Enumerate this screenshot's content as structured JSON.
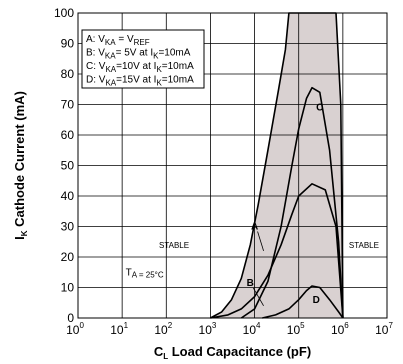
{
  "chart_data": {
    "type": "area",
    "title": "",
    "xlabel": {
      "symbol": "C",
      "subscript": "L",
      "text": "Load Capacitance (pF)"
    },
    "ylabel": {
      "symbol": "I",
      "subscript": "K",
      "text": "Cathode Current (mA)"
    },
    "x_scale": "log",
    "xlim": [
      1,
      10000000
    ],
    "ylim": [
      0,
      100
    ],
    "x_ticks": [
      {
        "base": "10",
        "exp": "0",
        "value": 1
      },
      {
        "base": "10",
        "exp": "1",
        "value": 10
      },
      {
        "base": "10",
        "exp": "2",
        "value": 100
      },
      {
        "base": "10",
        "exp": "3",
        "value": 1000
      },
      {
        "base": "10",
        "exp": "4",
        "value": 10000
      },
      {
        "base": "10",
        "exp": "5",
        "value": 100000
      },
      {
        "base": "10",
        "exp": "6",
        "value": 1000000
      },
      {
        "base": "10",
        "exp": "7",
        "value": 10000000
      }
    ],
    "y_ticks": [
      "0",
      "10",
      "20",
      "30",
      "40",
      "50",
      "60",
      "70",
      "80",
      "90",
      "100"
    ],
    "grid": true,
    "legend": {
      "position": "top-left",
      "entries": [
        {
          "key": "A:",
          "v": "V",
          "vsub": "KA",
          "mid": " = V",
          "msub": "REF",
          "tail": "",
          "isub": "",
          "end": ""
        },
        {
          "key": "B:",
          "v": "V",
          "vsub": "KA",
          "mid": "= 5V at I",
          "msub": "",
          "tail": "",
          "isub": "K",
          "end": "=10mA"
        },
        {
          "key": "C:",
          "v": "V",
          "vsub": "KA",
          "mid": "=10V at I",
          "msub": "",
          "tail": "",
          "isub": "K",
          "end": "=10mA"
        },
        {
          "key": "D:",
          "v": "V",
          "vsub": "KA",
          "mid": "=15V at I",
          "msub": "",
          "tail": "",
          "isub": "K",
          "end": "=10mA"
        }
      ]
    },
    "region_labels": [
      {
        "text": "STABLE",
        "x": 150,
        "y": 23
      },
      {
        "text": "STABLE",
        "x": 3000000,
        "y": 23
      }
    ],
    "annotation": {
      "text": "T",
      "sub": "A = 25°C"
    },
    "fill_color": "#d9d1d1",
    "series": [
      {
        "name": "A",
        "label_at": [
          10000,
          29
        ],
        "points": [
          [
            1000,
            0
          ],
          [
            1800,
            2
          ],
          [
            3000,
            6
          ],
          [
            5000,
            13
          ],
          [
            8000,
            24
          ],
          [
            12000,
            37
          ],
          [
            20000,
            55
          ],
          [
            35000,
            75
          ],
          [
            50000,
            88
          ],
          [
            60000,
            100
          ],
          [
            200000,
            100
          ],
          [
            400000,
            100
          ],
          [
            700000,
            100
          ],
          [
            900000,
            70
          ],
          [
            1000000,
            0
          ]
        ]
      },
      {
        "name": "B",
        "label_at": [
          8000,
          10.5
        ],
        "points": [
          [
            1000,
            0
          ],
          [
            2500,
            1
          ],
          [
            5000,
            3
          ],
          [
            10000,
            7
          ],
          [
            20000,
            14
          ],
          [
            40000,
            24
          ],
          [
            70000,
            34
          ],
          [
            100000,
            40
          ],
          [
            200000,
            44
          ],
          [
            400000,
            42
          ],
          [
            700000,
            30
          ],
          [
            1000000,
            0
          ]
        ]
      },
      {
        "name": "C",
        "label_at": [
          300000,
          68
        ],
        "points": [
          [
            5000,
            0
          ],
          [
            10000,
            3
          ],
          [
            20000,
            12
          ],
          [
            40000,
            30
          ],
          [
            70000,
            50
          ],
          [
            100000,
            62
          ],
          [
            150000,
            72
          ],
          [
            200000,
            75.5
          ],
          [
            300000,
            74
          ],
          [
            500000,
            55
          ],
          [
            800000,
            25
          ],
          [
            1000000,
            0
          ]
        ]
      },
      {
        "name": "D",
        "label_at": [
          250000,
          5
        ],
        "points": [
          [
            15000,
            0
          ],
          [
            30000,
            1
          ],
          [
            60000,
            3
          ],
          [
            100000,
            6
          ],
          [
            150000,
            9
          ],
          [
            200000,
            10.5
          ],
          [
            300000,
            10
          ],
          [
            500000,
            6
          ],
          [
            800000,
            2
          ],
          [
            1000000,
            0
          ]
        ]
      }
    ]
  }
}
